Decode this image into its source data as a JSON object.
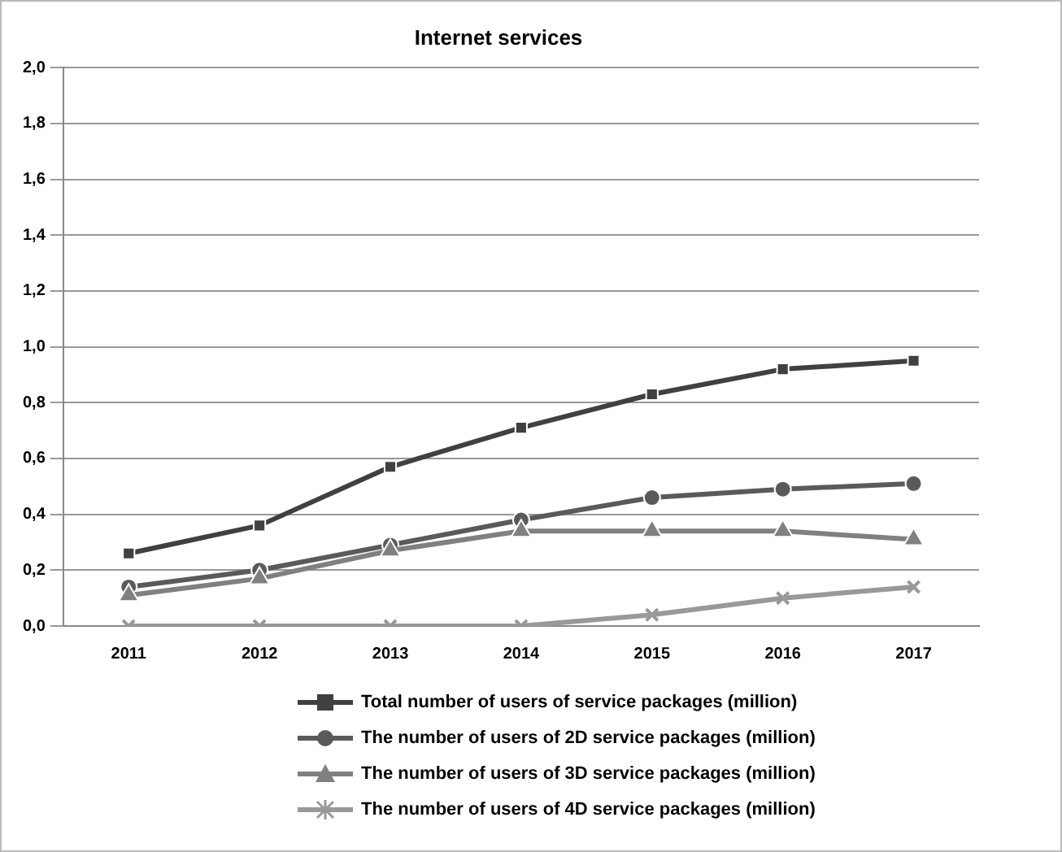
{
  "chart_data": {
    "type": "line",
    "title": "Internet services",
    "categories": [
      "2011",
      "2012",
      "2013",
      "2014",
      "2015",
      "2016",
      "2017"
    ],
    "series": [
      {
        "name": "Total number of users of service packages (million)",
        "color": "#404040",
        "marker": "square",
        "values": [
          0.26,
          0.36,
          0.57,
          0.71,
          0.83,
          0.92,
          0.95
        ]
      },
      {
        "name": "The number of users of 2D service packages (million)",
        "color": "#5a5a5a",
        "marker": "circle",
        "values": [
          0.14,
          0.2,
          0.29,
          0.38,
          0.46,
          0.49,
          0.51
        ]
      },
      {
        "name": "The number of users of 3D service packages (million)",
        "color": "#808080",
        "marker": "triangle",
        "values": [
          0.11,
          0.17,
          0.27,
          0.34,
          0.34,
          0.34,
          0.31
        ]
      },
      {
        "name": "The number of users of 4D service packages (million)",
        "color": "#999999",
        "marker": "cross",
        "values": [
          0,
          0,
          0,
          0,
          0.04,
          0.1,
          0.14
        ]
      }
    ],
    "ylim": [
      0,
      2
    ],
    "yticks": [
      {
        "value": 0,
        "label": "0,0"
      },
      {
        "value": 0.2,
        "label": "0,2"
      },
      {
        "value": 0.4,
        "label": "0,4"
      },
      {
        "value": 0.6,
        "label": "0,6"
      },
      {
        "value": 0.8,
        "label": "0,8"
      },
      {
        "value": 1,
        "label": "1,0"
      },
      {
        "value": 1.2,
        "label": "1,2"
      },
      {
        "value": 1.4,
        "label": "1,4"
      },
      {
        "value": 1.6,
        "label": "1,6"
      },
      {
        "value": 1.8,
        "label": "1,8"
      },
      {
        "value": 2,
        "label": "2,0"
      }
    ],
    "grid": "y",
    "legend": "bottom",
    "line_style": "solid"
  }
}
